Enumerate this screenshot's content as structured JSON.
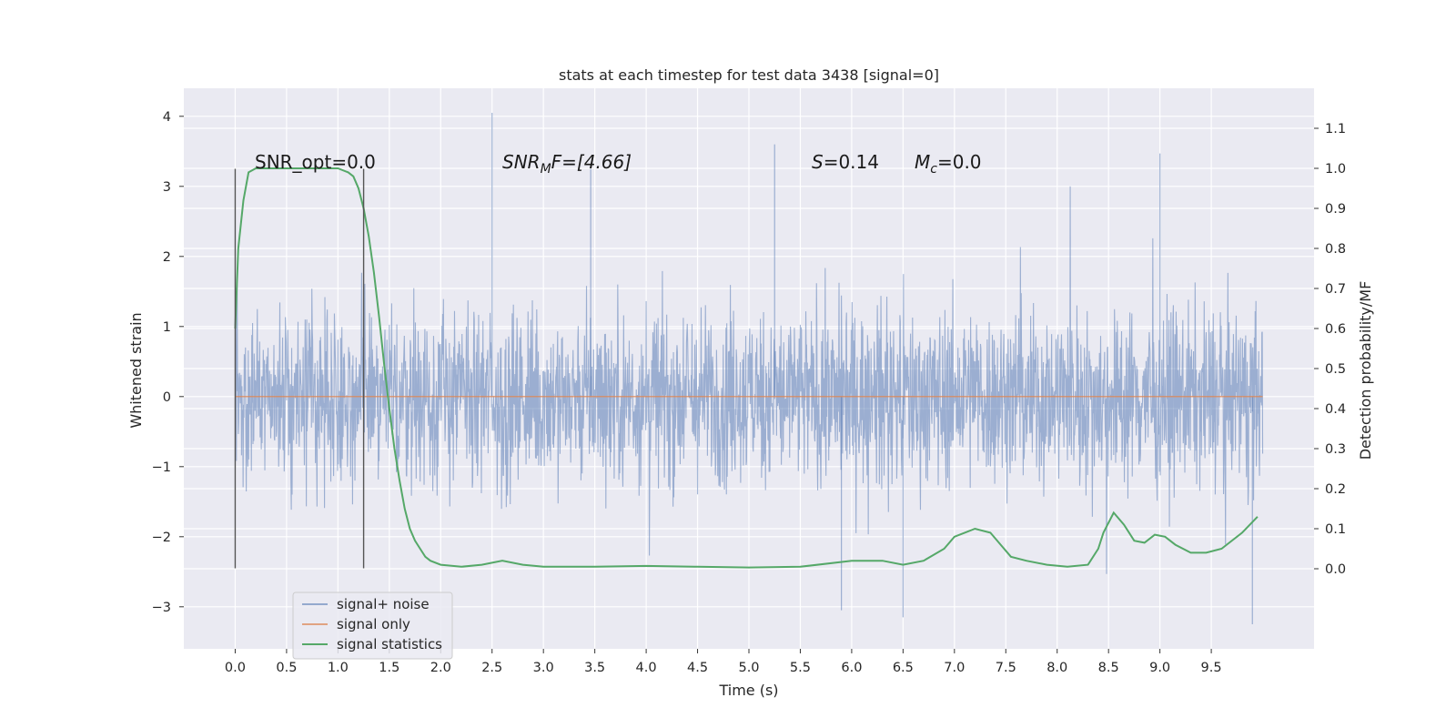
{
  "chart_data": {
    "type": "line",
    "title": "stats at each timestep for test data 3438 [signal=0]",
    "xlabel": "Time (s)",
    "ylabel_left": "Whitened strain",
    "ylabel_right": "Detection probability/MF",
    "xlim": [
      -0.5,
      10.5
    ],
    "ylim_left": [
      -3.6,
      4.4
    ],
    "ylim_right": [
      -0.2,
      1.2
    ],
    "x_ticks": [
      "0.0",
      "0.5",
      "1.0",
      "1.5",
      "2.0",
      "2.5",
      "3.0",
      "3.5",
      "4.0",
      "4.5",
      "5.0",
      "5.5",
      "6.0",
      "6.5",
      "7.0",
      "7.5",
      "8.0",
      "8.5",
      "9.0",
      "9.5"
    ],
    "y_left_ticks": [
      "4",
      "3",
      "2",
      "1",
      "0",
      "−1",
      "−2",
      "−3"
    ],
    "y_right_ticks": [
      "1.1",
      "1.0",
      "0.9",
      "0.8",
      "0.7",
      "0.6",
      "0.5",
      "0.4",
      "0.3",
      "0.2",
      "0.1",
      "0.0"
    ],
    "grid": true,
    "legend_position": "lower-left",
    "annotations": {
      "snr_opt": "SNR_opt=0.0",
      "snr_mf_base": "SNR",
      "snr_mf_sub": "M",
      "snr_mf_rest": "F=[4.66]",
      "s_base": "S",
      "s_rest": "=0.14",
      "mc_base": "M",
      "mc_sub": "c",
      "mc_rest": "=0.0"
    },
    "vertical_markers": [
      0.0,
      1.25
    ],
    "series": [
      {
        "name": "signal+ noise",
        "axis": "left",
        "color": "#4c72b0",
        "description_of_values": "dense noise, mostly within ±1.5, extremes between about -3.3 and 4.1",
        "extremes": [
          [
            2.5,
            4.05
          ],
          [
            3.46,
            3.25
          ],
          [
            5.25,
            3.6
          ],
          [
            9.0,
            3.47
          ],
          [
            9.9,
            -3.25
          ],
          [
            6.5,
            -3.15
          ],
          [
            5.9,
            -3.05
          ],
          [
            1.25,
            1.6
          ]
        ]
      },
      {
        "name": "signal only",
        "axis": "left",
        "color": "#dd8452",
        "x": [
          0.0,
          10.0
        ],
        "y": [
          0.0,
          0.0
        ]
      },
      {
        "name": "signal statistics",
        "axis": "right",
        "color": "#55a868",
        "x": [
          0.0,
          0.03,
          0.08,
          0.13,
          0.2,
          0.3,
          0.5,
          0.8,
          1.0,
          1.1,
          1.15,
          1.2,
          1.25,
          1.3,
          1.35,
          1.4,
          1.45,
          1.5,
          1.55,
          1.6,
          1.65,
          1.7,
          1.75,
          1.8,
          1.85,
          1.9,
          2.0,
          2.2,
          2.4,
          2.6,
          2.8,
          3.0,
          3.5,
          4.0,
          4.5,
          5.0,
          5.5,
          6.0,
          6.3,
          6.5,
          6.7,
          6.9,
          7.0,
          7.1,
          7.2,
          7.35,
          7.45,
          7.55,
          7.7,
          7.9,
          8.1,
          8.3,
          8.4,
          8.45,
          8.55,
          8.65,
          8.75,
          8.85,
          8.95,
          9.05,
          9.15,
          9.3,
          9.45,
          9.6,
          9.8,
          9.95
        ],
        "y": [
          0.6,
          0.8,
          0.92,
          0.99,
          1.0,
          1.0,
          1.0,
          1.0,
          1.0,
          0.99,
          0.98,
          0.95,
          0.9,
          0.83,
          0.74,
          0.63,
          0.51,
          0.4,
          0.3,
          0.22,
          0.15,
          0.1,
          0.07,
          0.05,
          0.03,
          0.02,
          0.01,
          0.005,
          0.01,
          0.02,
          0.01,
          0.005,
          0.005,
          0.007,
          0.005,
          0.003,
          0.005,
          0.02,
          0.02,
          0.01,
          0.02,
          0.05,
          0.08,
          0.09,
          0.1,
          0.09,
          0.06,
          0.03,
          0.02,
          0.01,
          0.005,
          0.01,
          0.05,
          0.09,
          0.14,
          0.11,
          0.07,
          0.065,
          0.085,
          0.08,
          0.06,
          0.04,
          0.04,
          0.05,
          0.09,
          0.13
        ]
      }
    ]
  }
}
